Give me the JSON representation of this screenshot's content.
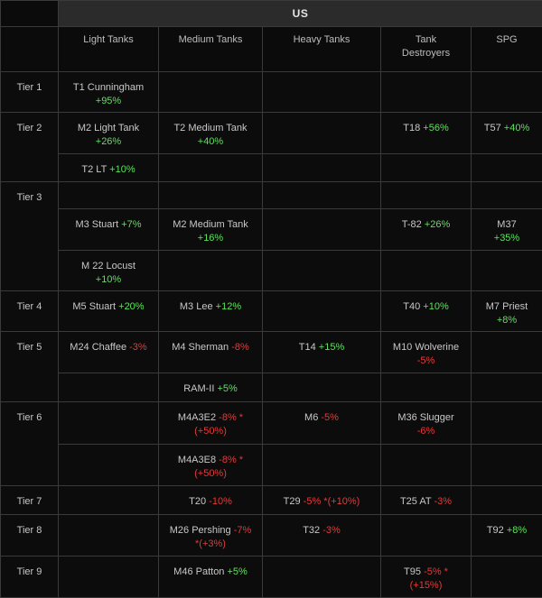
{
  "nation": "US",
  "columns": [
    "Light Tanks",
    "Medium Tanks",
    "Heavy Tanks",
    "Tank Destroyers",
    "SPG"
  ],
  "tiers": [
    "Tier 1",
    "Tier 2",
    "Tier 3",
    "Tier 4",
    "Tier 5",
    "Tier 6",
    "Tier 7",
    "Tier 8",
    "Tier 9"
  ],
  "cells": {
    "t1_light": {
      "name": "T1 Cunningham",
      "mod": "+95%"
    },
    "t2_light_a": {
      "name": "M2 Light Tank",
      "mod": "+26%"
    },
    "t2_light_b": {
      "name": "T2 LT",
      "mod": "+10%"
    },
    "t2_medium": {
      "name": "T2 Medium Tank",
      "mod": "+40%"
    },
    "t2_td": {
      "name": "T18",
      "mod": "+56%"
    },
    "t2_spg": {
      "name": "T57",
      "mod": "+40%"
    },
    "t3_light_a": {
      "name": "M3 Stuart",
      "mod": "+7%"
    },
    "t3_light_b": {
      "name": "M 22 Locust",
      "mod": "+10%"
    },
    "t3_medium": {
      "name": "M2 Medium Tank",
      "mod": "+16%"
    },
    "t3_td": {
      "name": "T-82",
      "mod": "+26%"
    },
    "t3_spg": {
      "name": "M37",
      "mod": "+35%"
    },
    "t4_light": {
      "name": "M5 Stuart",
      "mod": "+20%"
    },
    "t4_medium": {
      "name": "M3 Lee",
      "mod": "+12%"
    },
    "t4_td": {
      "name": "T40",
      "mod": "+10%"
    },
    "t4_spg": {
      "name": "M7 Priest",
      "mod": "+8%"
    },
    "t5_light": {
      "name": "M24 Chaffee",
      "mod": "-3%"
    },
    "t5_medium_a": {
      "name": "M4 Sherman",
      "mod": "-8%"
    },
    "t5_medium_b": {
      "name": "RAM-II",
      "mod": "+5%"
    },
    "t5_heavy": {
      "name": "T14",
      "mod": "+15%"
    },
    "t5_td": {
      "name": "M10 Wolverine",
      "mod": "-5%"
    },
    "t6_medium_a": {
      "name": "M4A3E2",
      "mod": "-8% *",
      "extra": "(+50%)"
    },
    "t6_medium_b": {
      "name": "M4A3E8",
      "mod": "-8% *",
      "extra": "(+50%)"
    },
    "t6_heavy": {
      "name": "M6",
      "mod": "-5%"
    },
    "t6_td": {
      "name": "M36 Slugger",
      "mod": "-6%"
    },
    "t7_medium": {
      "name": "T20",
      "mod": "-10%"
    },
    "t7_heavy": {
      "name": "T29",
      "mod": "-5% *(+10%)"
    },
    "t7_td": {
      "name": "T25 AT",
      "mod": "-3%"
    },
    "t8_medium": {
      "name": "M26 Pershing",
      "mod": "-7%",
      "extra": "*(+3%)"
    },
    "t8_heavy": {
      "name": "T32",
      "mod": "-3%"
    },
    "t8_spg": {
      "name": "T92",
      "mod": "+8%"
    },
    "t9_medium": {
      "name": "M46 Patton",
      "mod": "+5%"
    },
    "t9_td": {
      "name": "T95",
      "mod": "-5% *",
      "extra": "(+15%)"
    }
  },
  "colors": {
    "positive": "#5ee05e",
    "negative": "#e23a3a",
    "header_bg": "#2b2b2b",
    "grid": "#3a3a3a"
  }
}
